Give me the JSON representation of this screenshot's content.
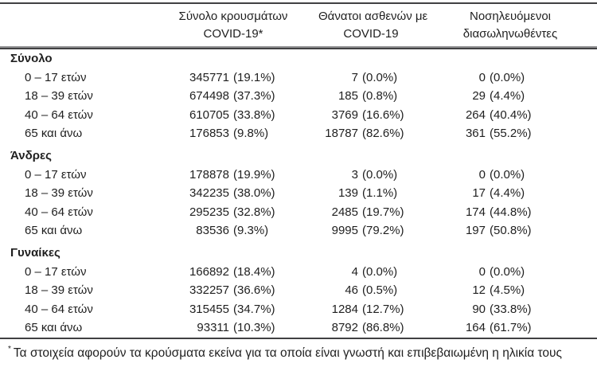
{
  "table": {
    "header": {
      "cases_line1": "Σύνολο κρουσμάτων",
      "cases_line2": "COVID-19*",
      "deaths_line1": "Θάνατοι ασθενών με",
      "deaths_line2": "COVID-19",
      "intubated_line1": "Νοσηλευόμενοι",
      "intubated_line2": "διασωληνωθέντες"
    },
    "sections": [
      {
        "label": "Σύνολο",
        "rows": [
          {
            "age": "0 – 17 ετών",
            "cases_n": "345771",
            "cases_p": "(19.1%)",
            "deaths_n": "7",
            "deaths_p": "(0.0%)",
            "intub_n": "0",
            "intub_p": "(0.0%)"
          },
          {
            "age": "18 – 39 ετών",
            "cases_n": "674498",
            "cases_p": "(37.3%)",
            "deaths_n": "185",
            "deaths_p": "(0.8%)",
            "intub_n": "29",
            "intub_p": "(4.4%)"
          },
          {
            "age": "40 – 64 ετών",
            "cases_n": "610705",
            "cases_p": "(33.8%)",
            "deaths_n": "3769",
            "deaths_p": "(16.6%)",
            "intub_n": "264",
            "intub_p": "(40.4%)"
          },
          {
            "age": "65 και άνω",
            "cases_n": "176853",
            "cases_p": "(9.8%)",
            "deaths_n": "18787",
            "deaths_p": "(82.6%)",
            "intub_n": "361",
            "intub_p": "(55.2%)"
          }
        ]
      },
      {
        "label": "Άνδρες",
        "rows": [
          {
            "age": "0 – 17 ετών",
            "cases_n": "178878",
            "cases_p": "(19.9%)",
            "deaths_n": "3",
            "deaths_p": "(0.0%)",
            "intub_n": "0",
            "intub_p": "(0.0%)"
          },
          {
            "age": "18 – 39 ετών",
            "cases_n": "342235",
            "cases_p": "(38.0%)",
            "deaths_n": "139",
            "deaths_p": "(1.1%)",
            "intub_n": "17",
            "intub_p": "(4.4%)"
          },
          {
            "age": "40 – 64 ετών",
            "cases_n": "295235",
            "cases_p": "(32.8%)",
            "deaths_n": "2485",
            "deaths_p": "(19.7%)",
            "intub_n": "174",
            "intub_p": "(44.8%)"
          },
          {
            "age": "65 και άνω",
            "cases_n": "83536",
            "cases_p": "(9.3%)",
            "deaths_n": "9995",
            "deaths_p": "(79.2%)",
            "intub_n": "197",
            "intub_p": "(50.8%)"
          }
        ]
      },
      {
        "label": "Γυναίκες",
        "rows": [
          {
            "age": "0 – 17 ετών",
            "cases_n": "166892",
            "cases_p": "(18.4%)",
            "deaths_n": "4",
            "deaths_p": "(0.0%)",
            "intub_n": "0",
            "intub_p": "(0.0%)"
          },
          {
            "age": "18 – 39 ετών",
            "cases_n": "332257",
            "cases_p": "(36.6%)",
            "deaths_n": "46",
            "deaths_p": "(0.5%)",
            "intub_n": "12",
            "intub_p": "(4.5%)"
          },
          {
            "age": "40 – 64 ετών",
            "cases_n": "315455",
            "cases_p": "(34.7%)",
            "deaths_n": "1284",
            "deaths_p": "(12.7%)",
            "intub_n": "90",
            "intub_p": "(33.8%)"
          },
          {
            "age": "65 και άνω",
            "cases_n": "93311",
            "cases_p": "(10.3%)",
            "deaths_n": "8792",
            "deaths_p": "(86.8%)",
            "intub_n": "164",
            "intub_p": "(61.7%)"
          }
        ]
      }
    ],
    "footnote_marker": "*",
    "footnote": "Τα στοιχεία αφορούν τα κρούσματα εκείνα για τα οποία είναι γνωστή και επιβεβαιωμένη η ηλικία τους"
  }
}
